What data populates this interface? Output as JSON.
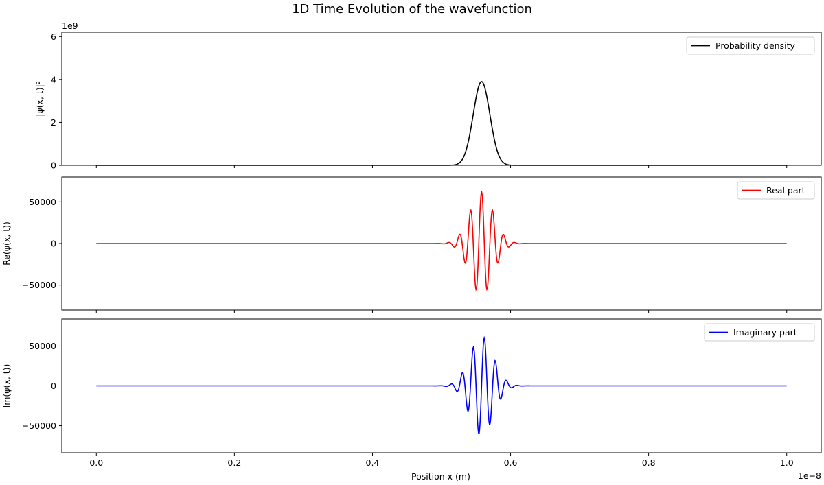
{
  "chart_data": {
    "type": "line",
    "title": "1D Time Evolution of the wavefunction",
    "xlabel": "Position x (m)",
    "x_offset_text": "1e−8",
    "xlim": [
      -0.05,
      1.05
    ],
    "x_ticks": [
      0.0,
      0.2,
      0.4,
      0.6,
      0.8,
      1.0
    ],
    "x_tick_labels": [
      "0.0",
      "0.2",
      "0.4",
      "0.6",
      "0.8",
      "1.0"
    ],
    "x_range": [
      0.0,
      1.0
    ],
    "wavepacket": {
      "center": 0.558,
      "sigma": 0.0121,
      "k": 392,
      "phase": 0.0
    },
    "panels": [
      {
        "id": "probability",
        "ylabel": "|ψ(x, t)|²",
        "y_offset_text": "1e9",
        "ylim": [
          0,
          6.2
        ],
        "y_ticks": [
          0,
          2,
          4,
          6
        ],
        "y_tick_labels": [
          "0",
          "2",
          "4",
          "6"
        ],
        "grid": false,
        "legend_position": "top-right",
        "series": [
          {
            "name": "Probability density",
            "color": "#000000",
            "kind": "density",
            "amplitude": 3.9
          }
        ]
      },
      {
        "id": "real",
        "ylabel": "Re(ψ(x, t))",
        "y_offset_text": "",
        "ylim": [
          -80000,
          80000
        ],
        "y_ticks": [
          -50000,
          0,
          50000
        ],
        "y_tick_labels": [
          "−50000",
          "0",
          "50000"
        ],
        "grid": false,
        "legend_position": "top-right",
        "series": [
          {
            "name": "Real part",
            "color": "#ff0000",
            "kind": "real",
            "amplitude": 62000
          }
        ]
      },
      {
        "id": "imag",
        "ylabel": "Im(ψ(x, t))",
        "y_offset_text": "",
        "ylim": [
          -84000,
          84000
        ],
        "y_ticks": [
          -50000,
          0,
          50000
        ],
        "y_tick_labels": [
          "−50000",
          "0",
          "50000"
        ],
        "grid": false,
        "legend_position": "top-right",
        "series": [
          {
            "name": "Imaginary part",
            "color": "#0000ff",
            "kind": "imag",
            "amplitude": 62000
          }
        ]
      }
    ]
  }
}
